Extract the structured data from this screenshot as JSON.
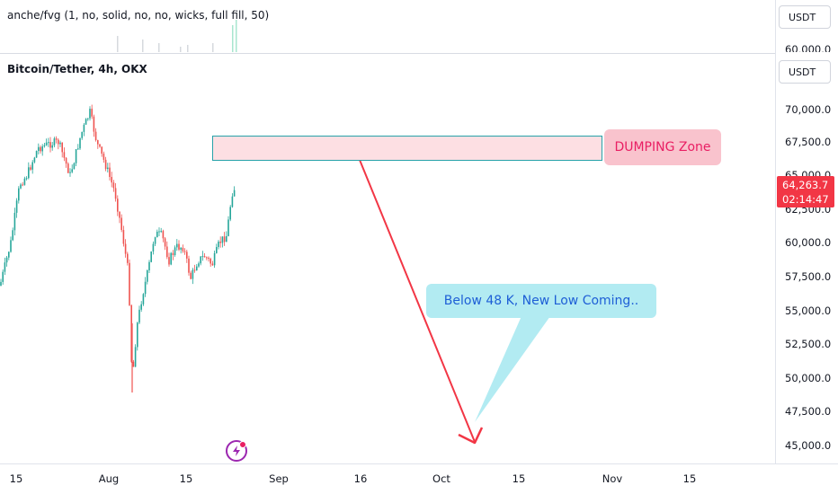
{
  "indicator": {
    "legend": "anche/fvg (1, no, solid, no, no, wicks, full fill, 50)",
    "currency": "USDT",
    "scale_label": "60,000.0"
  },
  "chart": {
    "legend": "Bitcoin/Tether, 4h, OKX",
    "currency": "USDT",
    "price_ticks": [
      "70,000.0",
      "67,500.0",
      "65,000.0",
      "62,500.0",
      "60,000.0",
      "57,500.0",
      "55,000.0",
      "52,500.0",
      "50,000.0",
      "47,500.0",
      "45,000.0"
    ],
    "last_price": "64,263.7",
    "countdown": "02:14:47",
    "time_ticks": [
      "15",
      "Aug",
      "15",
      "Sep",
      "16",
      "Oct",
      "15",
      "Nov",
      "15"
    ]
  },
  "annotations": {
    "dump_zone": "DUMPING Zone",
    "forecast": "Below 48 K, New Low Coming.."
  },
  "colors": {
    "up": "#26a69a",
    "down": "#ef5350",
    "arrow": "#f23645",
    "zone_fill": "#fddfe3",
    "zone_border": "#26a2a9",
    "dump_bg": "#f9c3cd",
    "forecast_bg": "#b2ebf2"
  },
  "icons": [
    "lightning-badge-icon"
  ]
}
